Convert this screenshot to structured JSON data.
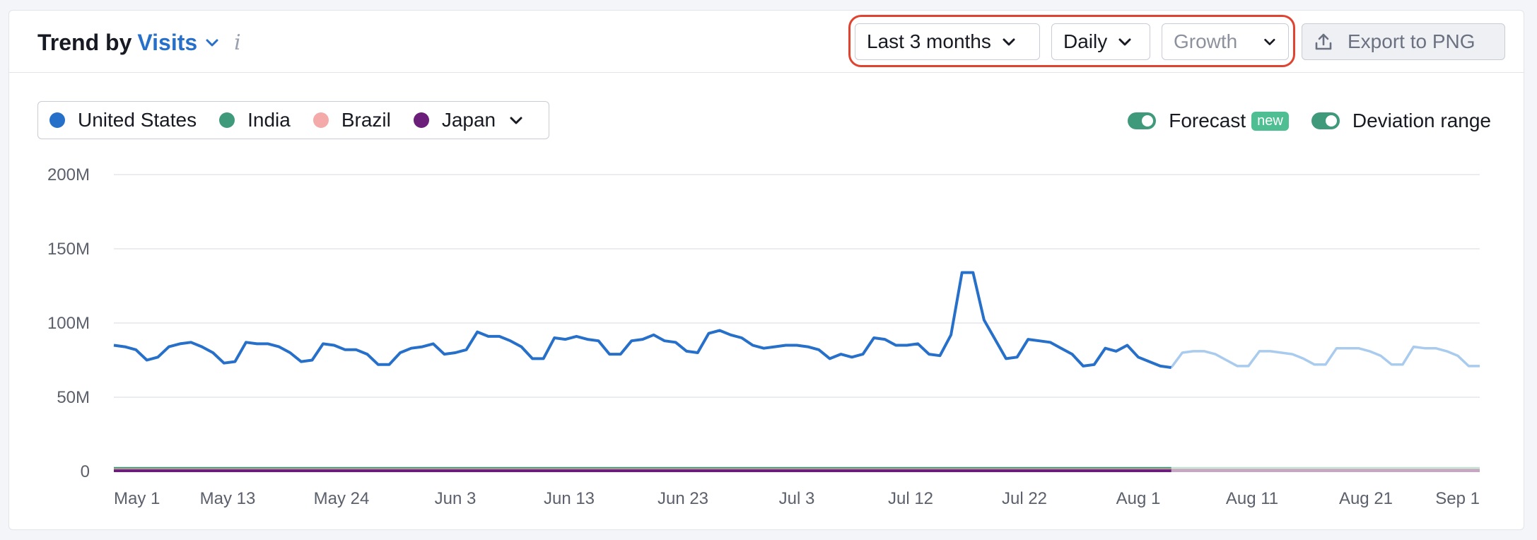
{
  "header": {
    "title_prefix": "Trend by",
    "metric": "Visits",
    "info_icon": "i"
  },
  "controls": {
    "range": "Last 3 months",
    "period": "Daily",
    "mode": "Growth",
    "export_label": "Export to PNG"
  },
  "legend": {
    "items": [
      {
        "label": "United States",
        "color": "#2770ca"
      },
      {
        "label": "India",
        "color": "#3f9a7c"
      },
      {
        "label": "Brazil",
        "color": "#f3aaa9"
      },
      {
        "label": "Japan",
        "color": "#6c1f7a"
      }
    ]
  },
  "toggles": {
    "forecast_label": "Forecast",
    "forecast_badge": "new",
    "deviation_label": "Deviation range"
  },
  "colors": {
    "accent": "#2770ca",
    "highlight": "#e0432f",
    "forecast_line": "#a9cbee"
  },
  "chart_data": {
    "type": "line",
    "yticks": [
      "200M",
      "150M",
      "100M",
      "50M",
      "0"
    ],
    "ylim": [
      0,
      200
    ],
    "xticks": [
      "May 1",
      "May 13",
      "May 24",
      "Jun 3",
      "Jun 13",
      "Jun 23",
      "Jul 3",
      "Jul 12",
      "Jul 22",
      "Aug 1",
      "Aug 11",
      "Aug 21",
      "Sep 1"
    ],
    "series": [
      {
        "name": "United States",
        "values": [
          85,
          84,
          82,
          75,
          77,
          84,
          86,
          87,
          84,
          80,
          73,
          74,
          87,
          86,
          86,
          84,
          80,
          74,
          75,
          86,
          85,
          82,
          82,
          79,
          72,
          72,
          80,
          83,
          84,
          86,
          79,
          80,
          82,
          94,
          91,
          91,
          88,
          84,
          76,
          76,
          90,
          89,
          91,
          89,
          88,
          79,
          79,
          88,
          89,
          92,
          88,
          87,
          81,
          80,
          93,
          95,
          92,
          90,
          85,
          83,
          84,
          85,
          85,
          84,
          82,
          76,
          79,
          77,
          79,
          90,
          89,
          85,
          85,
          86,
          79,
          78,
          92,
          134,
          134,
          102,
          89,
          76,
          77,
          89,
          88,
          87,
          83,
          79,
          71,
          72,
          83,
          81,
          85,
          77,
          74,
          71,
          70
        ]
      },
      {
        "name": "United States forecast",
        "values": [
          70,
          80,
          81,
          81,
          79,
          75,
          71,
          71,
          81,
          81,
          80,
          79,
          76,
          72,
          72,
          83,
          83,
          83,
          81,
          78,
          72,
          72,
          84,
          83,
          83,
          81,
          78,
          71,
          71
        ]
      },
      {
        "name": "India",
        "values": [
          2,
          2,
          2,
          2,
          2,
          2,
          2,
          2,
          2,
          2,
          2,
          2,
          2,
          2,
          2,
          2,
          2,
          2,
          2,
          2
        ]
      },
      {
        "name": "Brazil",
        "values": [
          1,
          1,
          1,
          1,
          1,
          1,
          1,
          1,
          1,
          1,
          1,
          1,
          1,
          1,
          1,
          1,
          1,
          1,
          1,
          1
        ]
      },
      {
        "name": "Japan",
        "values": [
          0.5,
          0.5,
          0.5,
          0.5,
          0.5,
          0.5,
          0.5,
          0.5,
          0.5,
          0.5,
          0.5,
          0.5,
          0.5,
          0.5,
          0.5,
          0.5,
          0.5,
          0.5,
          0.5,
          0.5
        ]
      }
    ]
  }
}
